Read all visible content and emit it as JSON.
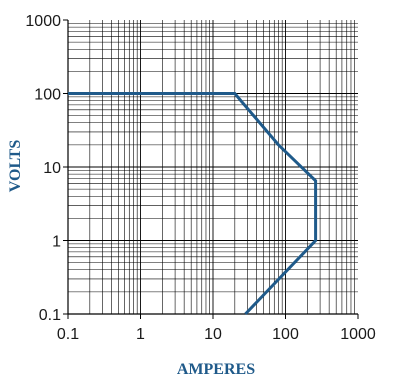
{
  "chart_data": {
    "type": "line",
    "xlabel": "AMPERES",
    "ylabel": "VOLTS",
    "xscale": "log",
    "yscale": "log",
    "xlim": [
      0.1,
      1000
    ],
    "ylim": [
      0.1,
      1000
    ],
    "x_ticks": [
      "0.1",
      "1",
      "10",
      "100",
      "1000"
    ],
    "y_ticks": [
      "1000",
      "100",
      "10",
      "1",
      "0.1"
    ],
    "grid": true,
    "series": [
      {
        "color": "#1f5a8a",
        "points": [
          {
            "x": 0.1,
            "y": 100
          },
          {
            "x": 20,
            "y": 100
          },
          {
            "x": 80,
            "y": 20
          },
          {
            "x": 260,
            "y": 6.5
          },
          {
            "x": 260,
            "y": 1
          },
          {
            "x": 28,
            "y": 0.1
          }
        ]
      }
    ],
    "colors": {
      "grid": "#000000",
      "title": "#1f5a8a",
      "ticks": "#1a1a1a"
    }
  }
}
